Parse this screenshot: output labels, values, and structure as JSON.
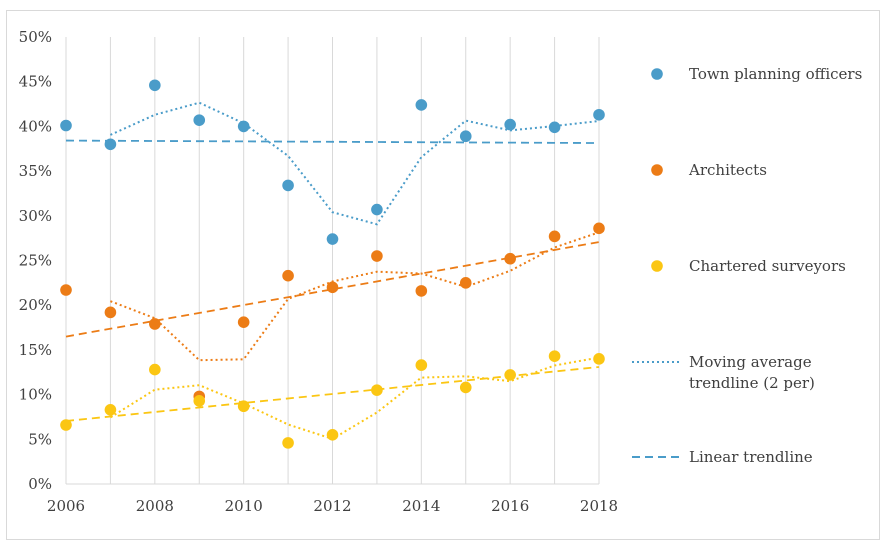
{
  "chart_data": {
    "type": "scatter",
    "x_ticks": [
      2006,
      2008,
      2010,
      2012,
      2014,
      2016,
      2018
    ],
    "y_ticks": [
      "0%",
      "5%",
      "10%",
      "15%",
      "20%",
      "25%",
      "30%",
      "35%",
      "40%",
      "45%",
      "50%"
    ],
    "xlim": [
      2006,
      2018
    ],
    "ylim": [
      0,
      50
    ],
    "grid": "vertical",
    "legend_position": "right",
    "x": [
      2006,
      2007,
      2008,
      2009,
      2010,
      2011,
      2012,
      2013,
      2014,
      2015,
      2016,
      2017,
      2018
    ],
    "series": [
      {
        "name": "Town planning officers",
        "color": "#4a9cc9",
        "values": [
          40.1,
          38.0,
          44.6,
          40.7,
          40.0,
          33.4,
          27.4,
          30.7,
          42.4,
          38.9,
          40.2,
          39.9,
          41.3
        ]
      },
      {
        "name": "Architects",
        "color": "#ec7c16",
        "values": [
          21.7,
          19.2,
          17.9,
          9.8,
          18.1,
          23.3,
          22.0,
          25.5,
          21.6,
          22.5,
          25.2,
          27.7,
          28.6
        ]
      },
      {
        "name": "Chartered surveyors",
        "color": "#fbc613",
        "values": [
          6.6,
          8.3,
          12.8,
          9.3,
          8.7,
          4.6,
          5.5,
          10.5,
          13.3,
          10.8,
          12.2,
          14.3,
          14.0
        ]
      }
    ],
    "legend_extra": [
      {
        "name": "Moving average trendline (2 per)",
        "lines": [
          "Moving average",
          "trendline (2 per)"
        ],
        "style": "dotted",
        "color": "#4a9cc9"
      },
      {
        "name": "Linear trendline",
        "lines": [
          "Linear trendline"
        ],
        "style": "dashed",
        "color": "#4a9cc9"
      }
    ]
  }
}
